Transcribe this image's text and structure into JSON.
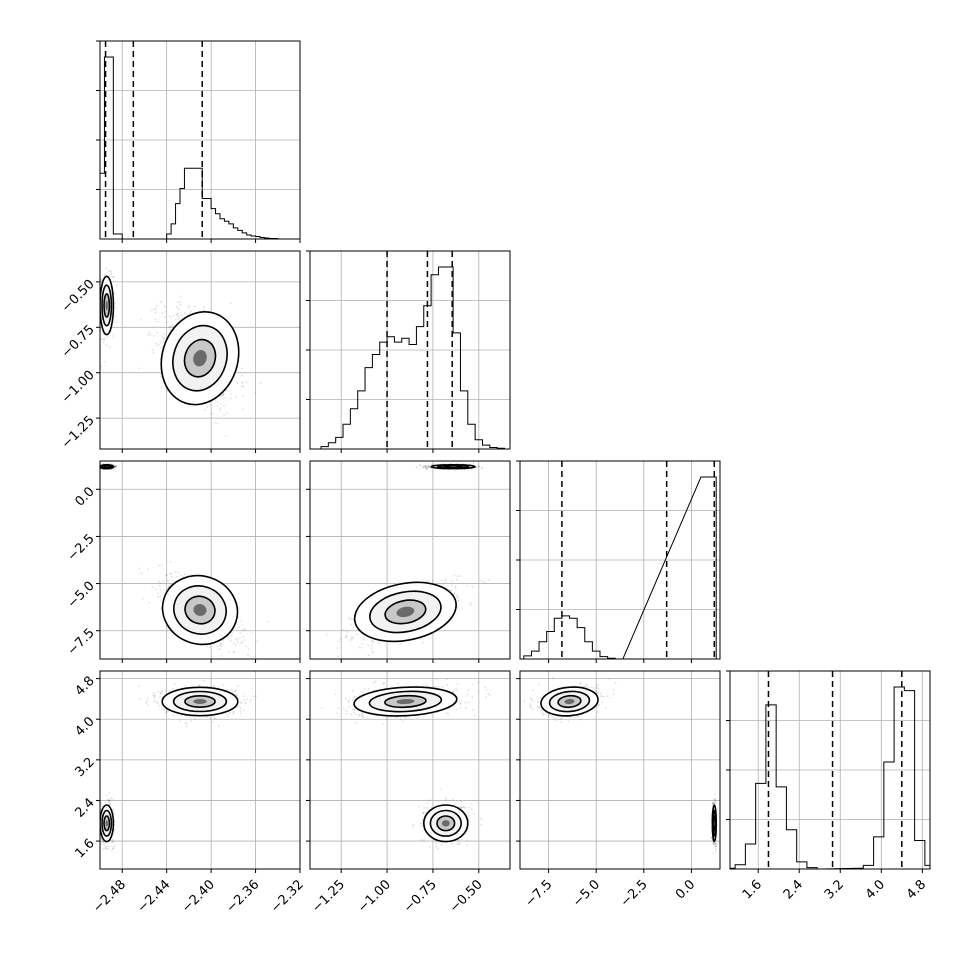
{
  "chart_data": {
    "type": "corner",
    "parameters": 4,
    "quantile_lines": "dashed",
    "grid": true,
    "axes": [
      {
        "range": [
          -2.5,
          -2.32
        ],
        "ticks": [
          -2.48,
          -2.44,
          -2.4,
          -2.36,
          -2.32
        ],
        "tick_labels": [
          "−2.48",
          "−2.44",
          "−2.40",
          "−2.36",
          "−2.32"
        ],
        "quantiles": [
          -2.495,
          -2.47,
          -2.408
        ]
      },
      {
        "range": [
          -1.42,
          -0.33
        ],
        "ticks": [
          -1.25,
          -1.0,
          -0.75,
          -0.5
        ],
        "tick_labels": [
          "−1.25",
          "−1.00",
          "−0.75",
          "−0.50"
        ],
        "quantiles": [
          -1.0,
          -0.78,
          -0.645
        ]
      },
      {
        "range": [
          -9.0,
          1.5
        ],
        "ticks": [
          -7.5,
          -5.0,
          -2.5,
          0.0
        ],
        "tick_labels": [
          "−7.5",
          "−5.0",
          "−2.5",
          "0.0"
        ],
        "quantiles": [
          -6.8,
          -1.3,
          1.2
        ]
      },
      {
        "range": [
          1.05,
          4.95
        ],
        "ticks": [
          1.6,
          2.4,
          3.2,
          4.0,
          4.8
        ],
        "tick_labels": [
          "1.6",
          "2.4",
          "3.2",
          "4.0",
          "4.8"
        ],
        "quantiles": [
          1.8,
          3.05,
          4.4
        ]
      }
    ],
    "histograms": [
      {
        "x": [
          -2.502,
          -2.498,
          -2.494,
          -2.49,
          -2.486,
          -2.482,
          -2.478,
          -2.474,
          -2.47,
          -2.466,
          -2.462,
          -2.458,
          -2.454,
          -2.45,
          -2.446,
          -2.442,
          -2.438,
          -2.434,
          -2.43,
          -2.426,
          -2.422,
          -2.418,
          -2.414,
          -2.41,
          -2.406,
          -2.402,
          -2.398,
          -2.394,
          -2.39,
          -2.386,
          -2.382,
          -2.378,
          -2.374,
          -2.37,
          -2.366,
          -2.362,
          -2.358,
          -2.354,
          -2.35,
          -2.346,
          -2.342
        ],
        "counts": [
          1.3,
          1.3,
          3.6,
          3.6,
          0.1,
          0.1,
          0,
          0,
          0,
          0,
          0,
          0,
          0,
          0,
          0,
          0,
          0.1,
          0.3,
          0.7,
          1.0,
          1.4,
          1.4,
          1.4,
          1.4,
          0.8,
          0.8,
          0.6,
          0.5,
          0.4,
          0.35,
          0.3,
          0.22,
          0.17,
          0.12,
          0.08,
          0.06,
          0.05,
          0.03,
          0.02,
          0.01,
          0.01
        ]
      },
      {
        "x": [
          -1.34,
          -1.3,
          -1.26,
          -1.22,
          -1.18,
          -1.14,
          -1.1,
          -1.06,
          -1.02,
          -0.98,
          -0.94,
          -0.9,
          -0.86,
          -0.82,
          -0.78,
          -0.74,
          -0.7,
          -0.66,
          -0.62,
          -0.58,
          -0.54,
          -0.5,
          -0.46,
          -0.42,
          -0.38
        ],
        "counts": [
          0.03,
          0.08,
          0.15,
          0.32,
          0.52,
          0.75,
          1.05,
          1.22,
          1.38,
          1.45,
          1.38,
          1.43,
          1.35,
          1.58,
          1.85,
          2.25,
          2.35,
          2.35,
          1.5,
          0.75,
          0.32,
          0.12,
          0.05,
          0.02,
          0.01
        ]
      },
      {
        "x": [
          -8.6,
          -8.2,
          -7.8,
          -7.4,
          -7.0,
          -6.6,
          -6.2,
          -5.8,
          -5.4,
          -5.0,
          -4.6,
          -4.2,
          -3.8,
          0.7,
          1.1
        ],
        "counts": [
          0.04,
          0.1,
          0.22,
          0.35,
          0.52,
          0.55,
          0.52,
          0.4,
          0.22,
          0.1,
          0.03,
          0.01,
          0,
          2.32,
          2.32
        ]
      },
      {
        "x": [
          1.1,
          1.2,
          1.3,
          1.4,
          1.5,
          1.6,
          1.7,
          1.8,
          1.9,
          2.0,
          2.1,
          2.2,
          2.3,
          2.4,
          2.5,
          2.6,
          2.7,
          2.8,
          3.6,
          3.7,
          3.8,
          3.9,
          4.0,
          4.1,
          4.2,
          4.3,
          4.4,
          4.5,
          4.6,
          4.7,
          4.8,
          4.9
        ],
        "counts": [
          0.01,
          0.06,
          0.06,
          0.35,
          0.35,
          1.2,
          1.2,
          2.3,
          2.3,
          1.15,
          1.15,
          0.55,
          0.55,
          0.1,
          0.1,
          0.02,
          0.02,
          0,
          0.01,
          0.05,
          0.05,
          0.45,
          0.45,
          1.5,
          1.5,
          2.55,
          2.55,
          2.5,
          2.5,
          0.4,
          0.4,
          0.05
        ]
      }
    ],
    "clusters": [
      {
        "pair": [
          1,
          0
        ],
        "modes": [
          {
            "mean": [
              -2.494,
              -0.63
            ],
            "sd": [
              0.003,
              0.08
            ],
            "rho": 0,
            "weight": 0.45
          },
          {
            "mean": [
              -2.41,
              -0.92
            ],
            "sd": [
              0.017,
              0.13
            ],
            "rho": -0.45,
            "weight": 0.55
          }
        ]
      },
      {
        "pair": [
          2,
          0
        ],
        "modes": [
          {
            "mean": [
              -2.494,
              1.2
            ],
            "sd": [
              0.003,
              0.05
            ],
            "rho": 0,
            "weight": 0.45
          },
          {
            "mean": [
              -2.41,
              -6.4
            ],
            "sd": [
              0.017,
              0.9
            ],
            "rho": -0.65,
            "weight": 0.55
          }
        ]
      },
      {
        "pair": [
          2,
          1
        ],
        "modes": [
          {
            "mean": [
              -0.64,
              1.2
            ],
            "sd": [
              0.06,
              0.05
            ],
            "rho": 0,
            "weight": 0.45
          },
          {
            "mean": [
              -0.9,
              -6.5
            ],
            "sd": [
              0.14,
              0.75
            ],
            "rho": 0.6,
            "weight": 0.55
          }
        ]
      },
      {
        "pair": [
          3,
          0
        ],
        "modes": [
          {
            "mean": [
              -2.494,
              1.95
            ],
            "sd": [
              0.003,
              0.18
            ],
            "rho": 0,
            "weight": 0.45
          },
          {
            "mean": [
              -2.41,
              4.35
            ],
            "sd": [
              0.017,
              0.14
            ],
            "rho": 0,
            "weight": 0.55
          }
        ]
      },
      {
        "pair": [
          3,
          1
        ],
        "modes": [
          {
            "mean": [
              -0.68,
              1.95
            ],
            "sd": [
              0.06,
              0.18
            ],
            "rho": 0,
            "weight": 0.45
          },
          {
            "mean": [
              -0.9,
              4.35
            ],
            "sd": [
              0.14,
              0.14
            ],
            "rho": 0.3,
            "weight": 0.55
          }
        ]
      },
      {
        "pair": [
          3,
          2
        ],
        "modes": [
          {
            "mean": [
              1.2,
              1.95
            ],
            "sd": [
              0.05,
              0.18
            ],
            "rho": 0,
            "weight": 0.45
          },
          {
            "mean": [
              -6.4,
              4.35
            ],
            "sd": [
              0.75,
              0.14
            ],
            "rho": 0.3,
            "weight": 0.55
          }
        ]
      }
    ]
  }
}
